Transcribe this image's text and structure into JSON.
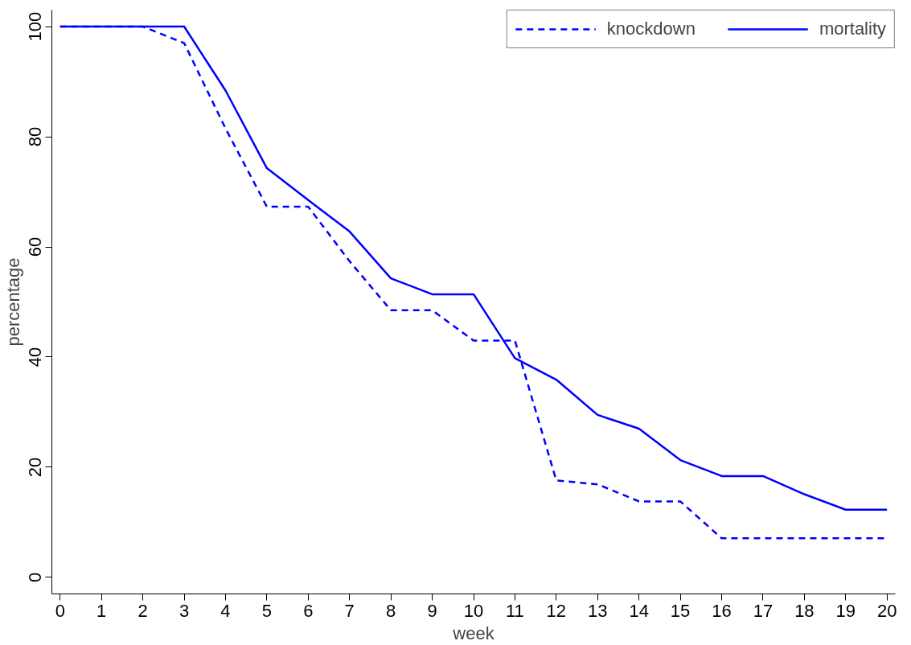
{
  "chart_data": {
    "type": "line",
    "xlabel": "week",
    "ylabel": "percentage",
    "x": [
      0,
      1,
      2,
      3,
      4,
      5,
      6,
      7,
      8,
      9,
      10,
      11,
      12,
      13,
      14,
      15,
      16,
      17,
      18,
      19,
      20
    ],
    "series": [
      {
        "name": "knockdown",
        "color": "#0000ff",
        "line_style": "dashed",
        "values": [
          100,
          100,
          100,
          97,
          81.5,
          67.3,
          67.3,
          57.4,
          48.5,
          48.5,
          43,
          43,
          17.6,
          16.9,
          13.8,
          13.8,
          7.1,
          7.1,
          7.1,
          7.1,
          7.1
        ]
      },
      {
        "name": "mortality",
        "color": "#0000ff",
        "line_style": "solid",
        "values": [
          100,
          100,
          100,
          100,
          88.4,
          74.3,
          68.5,
          62.8,
          54.3,
          51.4,
          51.4,
          39.8,
          35.9,
          29.5,
          27,
          21.3,
          18.4,
          18.4,
          15.1,
          12.3,
          12.3
        ]
      }
    ],
    "xlim": [
      -0.2,
      20.2
    ],
    "ylim": [
      -3,
      103
    ],
    "xticks": [
      0,
      1,
      2,
      3,
      4,
      5,
      6,
      7,
      8,
      9,
      10,
      11,
      12,
      13,
      14,
      15,
      16,
      17,
      18,
      19,
      20
    ],
    "yticks": [
      0,
      20,
      40,
      60,
      80,
      100
    ],
    "grid": false,
    "legend": "top right",
    "marker": "none"
  }
}
